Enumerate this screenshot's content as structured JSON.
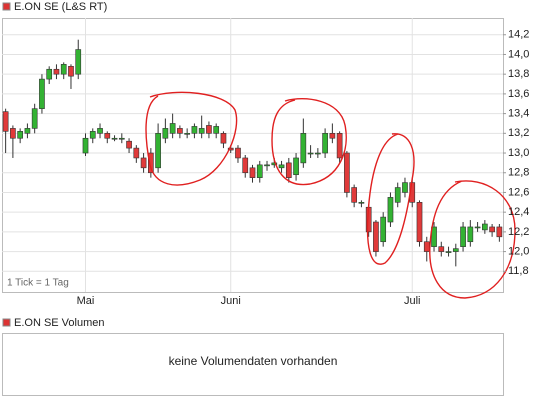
{
  "chart_data": {
    "type": "candlestick",
    "title": "E.ON SE (L&S RT)",
    "note": "1 Tick = 1 Tag",
    "volume_title": "E.ON SE Volumen",
    "volume_message": "keine Volumendaten vorhanden",
    "categories": [
      null,
      null,
      null,
      null,
      null,
      null,
      null,
      null,
      null,
      null,
      null,
      "Mai",
      null,
      null,
      null,
      null,
      null,
      null,
      null,
      null,
      null,
      null,
      null,
      null,
      null,
      null,
      null,
      null,
      null,
      null,
      null,
      "Juni",
      null,
      null,
      null,
      null,
      null,
      null,
      null,
      null,
      null,
      null,
      null,
      null,
      null,
      null,
      null,
      null,
      null,
      null,
      null,
      null,
      null,
      null,
      null,
      null,
      "Juli",
      null,
      null,
      null,
      null,
      null,
      null,
      null,
      null,
      null,
      null,
      null,
      null
    ],
    "open": [
      13.42,
      13.25,
      13.15,
      13.2,
      13.25,
      13.45,
      13.75,
      13.85,
      13.8,
      13.88,
      13.8,
      13.0,
      13.15,
      13.2,
      13.2,
      13.15,
      13.15,
      13.12,
      13.05,
      12.95,
      13.0,
      12.85,
      13.15,
      13.2,
      13.25,
      13.2,
      13.2,
      13.2,
      13.28,
      13.2,
      13.2,
      13.05,
      13.05,
      12.95,
      12.85,
      12.75,
      12.88,
      12.88,
      12.85,
      12.9,
      12.78,
      12.9,
      13.0,
      13.0,
      13.0,
      13.2,
      13.2,
      13.0,
      12.65,
      12.5,
      12.45,
      12.3,
      12.1,
      12.3,
      12.5,
      12.6,
      12.7,
      12.5,
      12.1,
      12.05,
      12.05,
      12.0,
      12.0,
      12.05,
      12.1,
      12.25,
      12.22,
      12.25,
      12.25
    ],
    "high": [
      13.45,
      13.28,
      13.25,
      13.3,
      13.5,
      13.8,
      13.88,
      13.9,
      13.92,
      13.9,
      14.15,
      13.2,
      13.25,
      13.3,
      13.22,
      13.18,
      13.2,
      13.15,
      13.08,
      13.0,
      13.05,
      13.3,
      13.35,
      13.4,
      13.28,
      13.25,
      13.3,
      13.38,
      13.32,
      13.3,
      13.22,
      13.08,
      13.08,
      12.98,
      12.88,
      12.92,
      12.92,
      12.95,
      12.92,
      12.95,
      13.0,
      13.35,
      13.08,
      13.05,
      13.25,
      13.3,
      13.22,
      13.02,
      12.68,
      12.52,
      12.48,
      12.32,
      12.4,
      12.6,
      12.7,
      12.75,
      12.75,
      12.52,
      12.15,
      12.3,
      12.1,
      12.05,
      12.08,
      12.3,
      12.32,
      12.3,
      12.32,
      12.28,
      12.28
    ],
    "low": [
      13.0,
      12.95,
      13.1,
      13.15,
      13.2,
      13.4,
      13.7,
      13.75,
      13.75,
      13.65,
      13.75,
      12.97,
      13.1,
      13.15,
      13.1,
      13.12,
      13.1,
      13.0,
      12.9,
      12.8,
      12.75,
      12.8,
      13.1,
      13.15,
      13.15,
      13.15,
      13.15,
      13.15,
      13.15,
      13.15,
      13.05,
      13.0,
      12.9,
      12.75,
      12.7,
      12.7,
      12.82,
      12.85,
      12.8,
      12.7,
      12.72,
      12.85,
      12.95,
      12.95,
      12.95,
      13.1,
      12.9,
      12.55,
      12.45,
      12.45,
      12.15,
      11.95,
      12.05,
      12.25,
      12.45,
      12.55,
      12.45,
      12.05,
      11.9,
      12.0,
      11.95,
      11.95,
      11.85,
      12.0,
      12.05,
      12.2,
      12.18,
      12.15,
      12.1
    ],
    "close": [
      13.22,
      13.15,
      13.22,
      13.25,
      13.45,
      13.75,
      13.85,
      13.8,
      13.9,
      13.78,
      14.05,
      13.15,
      13.22,
      13.25,
      13.15,
      13.15,
      13.15,
      13.05,
      12.95,
      12.85,
      12.8,
      13.2,
      13.25,
      13.3,
      13.2,
      13.2,
      13.27,
      13.25,
      13.2,
      13.27,
      13.1,
      13.03,
      12.95,
      12.8,
      12.75,
      12.88,
      12.88,
      12.9,
      12.88,
      12.75,
      12.95,
      13.2,
      13.0,
      13.0,
      13.2,
      13.15,
      12.95,
      12.6,
      12.5,
      12.5,
      12.2,
      12.0,
      12.35,
      12.55,
      12.65,
      12.7,
      12.5,
      12.1,
      12.0,
      12.25,
      12.0,
      12.0,
      12.03,
      12.25,
      12.25,
      12.25,
      12.28,
      12.2,
      12.15
    ],
    "up_color": "#33b233",
    "down_color": "#e03a3a",
    "ylim": [
      11.59,
      14.37
    ],
    "yticks": [
      {
        "value": 11.8,
        "label": "11,8"
      },
      {
        "value": 12.0,
        "label": "12,0"
      },
      {
        "value": 12.2,
        "label": "12,2"
      },
      {
        "value": 12.4,
        "label": "12,4"
      },
      {
        "value": 12.6,
        "label": "12,6"
      },
      {
        "value": 12.8,
        "label": "12,8"
      },
      {
        "value": 13.0,
        "label": "13,0"
      },
      {
        "value": 13.2,
        "label": "13,2"
      },
      {
        "value": 13.4,
        "label": "13,4"
      },
      {
        "value": 13.6,
        "label": "13,6"
      },
      {
        "value": 13.8,
        "label": "13,8"
      },
      {
        "value": 14.0,
        "label": "14,0"
      },
      {
        "value": 14.2,
        "label": "14,2"
      }
    ],
    "grid": true
  }
}
